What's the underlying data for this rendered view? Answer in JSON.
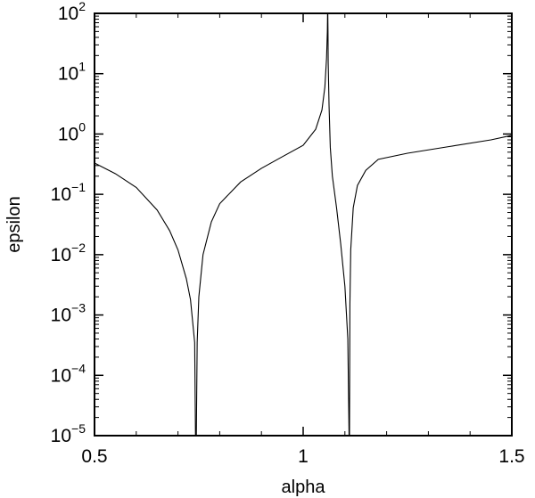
{
  "chart_data": {
    "type": "line",
    "title": "",
    "xlabel": "alpha",
    "ylabel": "epsilon",
    "xlim": [
      0.5,
      1.5
    ],
    "ylim": [
      1e-05,
      100
    ],
    "yscale": "log",
    "grid": false,
    "legend": "none",
    "line_color": "#000000",
    "x_ticks": [
      {
        "value": 0.5,
        "label": "0.5"
      },
      {
        "value": 1.0,
        "label": "1"
      },
      {
        "value": 1.5,
        "label": "1.5"
      }
    ],
    "y_ticks": [
      {
        "value": 1e-05,
        "base": "10",
        "exp": "−5"
      },
      {
        "value": 0.0001,
        "base": "10",
        "exp": "−4"
      },
      {
        "value": 0.001,
        "base": "10",
        "exp": "−3"
      },
      {
        "value": 0.01,
        "base": "10",
        "exp": "−2"
      },
      {
        "value": 0.1,
        "base": "10",
        "exp": "−1"
      },
      {
        "value": 1,
        "base": "10",
        "exp": "0"
      },
      {
        "value": 10,
        "base": "10",
        "exp": "1"
      },
      {
        "value": 100,
        "base": "10",
        "exp": "2"
      }
    ],
    "series": [
      {
        "x": [
          0.5,
          0.55,
          0.6,
          0.65,
          0.68,
          0.7,
          0.72,
          0.73,
          0.74,
          0.742,
          0.744,
          0.746,
          0.75,
          0.76,
          0.78,
          0.8,
          0.85,
          0.9,
          0.95,
          1.0,
          1.03,
          1.045,
          1.052,
          1.056,
          1.058,
          1.0585,
          1.059,
          1.0595,
          1.06,
          1.062,
          1.065,
          1.07,
          1.08,
          1.09,
          1.1,
          1.107,
          1.11,
          1.111,
          1.112,
          1.114,
          1.12,
          1.13,
          1.15,
          1.18,
          1.25,
          1.35,
          1.45,
          1.5
        ],
        "y": [
          0.33,
          0.22,
          0.13,
          0.055,
          0.025,
          0.012,
          0.004,
          0.0018,
          0.00035,
          1e-05,
          1e-05,
          0.00035,
          0.002,
          0.01,
          0.035,
          0.07,
          0.16,
          0.27,
          0.42,
          0.65,
          1.2,
          2.5,
          6.0,
          18.0,
          50.0,
          100.0,
          100.0,
          50.0,
          15.0,
          3.0,
          0.6,
          0.2,
          0.06,
          0.015,
          0.003,
          0.0004,
          1e-05,
          1e-05,
          0.0015,
          0.012,
          0.06,
          0.14,
          0.25,
          0.38,
          0.48,
          0.62,
          0.8,
          0.95
        ]
      }
    ]
  }
}
